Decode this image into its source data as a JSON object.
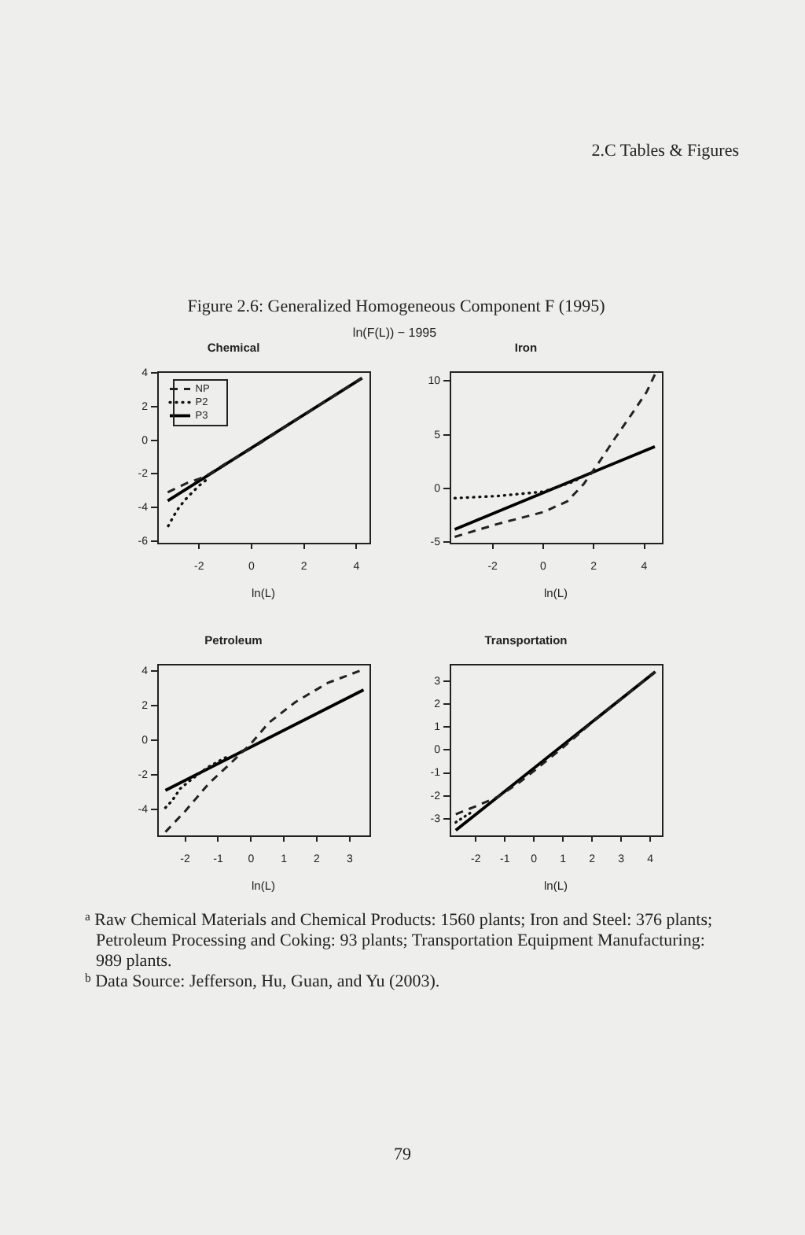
{
  "chart_data": [
    {
      "type": "line",
      "title": "Chemical",
      "xlabel": "ln(L)",
      "xlim": [
        -3.6,
        4.5
      ],
      "xticks": [
        -2,
        0,
        2,
        4
      ],
      "ylim": [
        -6.1,
        4.1
      ],
      "yticks": [
        -6,
        -4,
        -2,
        0,
        2,
        4
      ],
      "legend": "top left",
      "annotations": [
        "2.C Tables & Figures",
        "Figure 2.6: Generalized Homogeneous Component F (1995)",
        "ln(F(L)) − 1995",
        "$^{a}$ Raw Chemical Materials and Chemical Products: 1560 plants; Iron and Steel: 376 plants; Petroleum Processing and Coking: 93 plants; Transportation Equipment Manufacturing: 989 plants.",
        "$^{b}$ Data Source: Jefferson, Hu, Guan, and Yu (2003).",
        "79"
      ],
      "series": [
        {
          "name": "NP",
          "color": "#222222",
          "line_style": "dashed",
          "x": [
            -3.2,
            -2.8,
            -2.4,
            -2.0,
            -1.6,
            -1.0,
            0,
            1,
            2,
            3,
            4.2
          ],
          "values": [
            -3.1,
            -2.8,
            -2.5,
            -2.3,
            -2.0,
            -1.4,
            -0.5,
            0.5,
            1.5,
            2.5,
            3.7
          ]
        },
        {
          "name": "P2",
          "color": "#111111",
          "line_style": "dotted",
          "x": [
            -3.18,
            -2.97,
            -2.77,
            -2.51,
            -2.26,
            -2.0,
            -1.76
          ],
          "values": [
            -5.1,
            -4.5,
            -4.0,
            -3.5,
            -3.1,
            -2.7,
            -2.4
          ]
        },
        {
          "name": "P3",
          "color": "#000000",
          "line_style": "solid",
          "x": [
            -3.2,
            4.22
          ],
          "values": [
            -3.6,
            3.7
          ]
        }
      ]
    },
    {
      "type": "line",
      "title": "Iron",
      "xlabel": "ln(L)",
      "xlim": [
        -3.7,
        4.7
      ],
      "xticks": [
        -2,
        0,
        2,
        4
      ],
      "ylim": [
        -5.05,
        10.9
      ],
      "yticks": [
        -5,
        0,
        5,
        10
      ],
      "legend": false,
      "series": [
        {
          "color": "#222222",
          "line_style": "dashed",
          "x": [
            -3.5,
            -1.8,
            0,
            0.95,
            1.6,
            2.2,
            2.85,
            3.5,
            4.1,
            4.42
          ],
          "values": [
            -4.5,
            -3.3,
            -2.2,
            -1.2,
            0.4,
            2.4,
            4.7,
            6.9,
            9.0,
            10.6
          ]
        },
        {
          "color": "#111111",
          "line_style": "dotted",
          "x": [
            -3.5,
            -1.8,
            0,
            1.15,
            2.0
          ],
          "values": [
            -0.9,
            -0.7,
            -0.3,
            0.6,
            1.6
          ]
        },
        {
          "color": "#000000",
          "line_style": "solid",
          "x": [
            -3.5,
            4.42
          ],
          "values": [
            -3.8,
            3.9
          ]
        }
      ]
    },
    {
      "type": "line",
      "title": "Petroleum",
      "xlabel": "ln(L)",
      "xlim": [
        -2.85,
        3.6
      ],
      "xticks": [
        -2,
        -1,
        0,
        1,
        2,
        3
      ],
      "ylim": [
        -5.5,
        4.4
      ],
      "yticks": [
        -4,
        -2,
        0,
        2,
        4
      ],
      "legend": false,
      "series": [
        {
          "color": "#222222",
          "line_style": "dashed",
          "x": [
            -2.6,
            -2.0,
            -1.28,
            -0.6,
            0,
            0.54,
            1.35,
            2.33,
            3.3
          ],
          "values": [
            -5.3,
            -4.1,
            -2.5,
            -1.3,
            -0.2,
            1.0,
            2.2,
            3.3,
            4.0
          ]
        },
        {
          "color": "#111111",
          "line_style": "dotted",
          "x": [
            -2.6,
            -2.4,
            -2.15,
            -1.83,
            -1.34,
            -0.77
          ],
          "values": [
            -3.9,
            -3.5,
            -2.8,
            -2.3,
            -1.6,
            -1.0
          ]
        },
        {
          "color": "#000000",
          "line_style": "solid",
          "x": [
            -2.6,
            3.42
          ],
          "values": [
            -2.9,
            2.9
          ]
        }
      ]
    },
    {
      "type": "line",
      "title": "Transportation",
      "xlabel": "ln(L)",
      "xlim": [
        -2.9,
        4.4
      ],
      "xticks": [
        -2,
        -1,
        0,
        1,
        2,
        3,
        4
      ],
      "ylim": [
        -3.72,
        3.75
      ],
      "yticks": [
        -3,
        -2,
        -1,
        0,
        1,
        2,
        3
      ],
      "legend": false,
      "series": [
        {
          "color": "#222222",
          "line_style": "dashed",
          "x": [
            -2.69,
            -1.96,
            -1.22,
            -0.49,
            0.05,
            0.96,
            2,
            3,
            4.17
          ],
          "values": [
            -2.8,
            -2.43,
            -2.03,
            -1.4,
            -0.86,
            0.07,
            1.2,
            2.22,
            3.41
          ]
        },
        {
          "color": "#111111",
          "line_style": "dotted",
          "x": [
            -2.69,
            -2.45,
            -2.2
          ],
          "values": [
            -3.15,
            -2.95,
            -2.75
          ]
        },
        {
          "color": "#000000",
          "line_style": "solid",
          "x": [
            -2.69,
            4.17
          ],
          "values": [
            -3.5,
            3.41
          ]
        }
      ]
    }
  ]
}
